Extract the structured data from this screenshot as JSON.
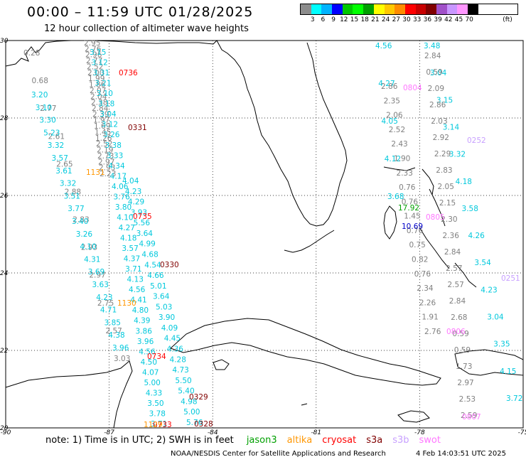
{
  "header": {
    "title": "00:00 – 11:59 UTC 01/28/2025",
    "subtitle": "12 hour collection of altimeter wave heights"
  },
  "legend": {
    "unit": "(ft)",
    "bins": [
      {
        "label": "3",
        "color": "#8c8c8c"
      },
      {
        "label": "6",
        "color": "#00ffff"
      },
      {
        "label": "9",
        "color": "#00b4ff"
      },
      {
        "label": "12",
        "color": "#0000ff"
      },
      {
        "label": "15",
        "color": "#00c800"
      },
      {
        "label": "18",
        "color": "#00ff00"
      },
      {
        "label": "21",
        "color": "#00a000"
      },
      {
        "label": "24",
        "color": "#ffff00"
      },
      {
        "label": "27",
        "color": "#ffc800"
      },
      {
        "label": "30",
        "color": "#ff8c00"
      },
      {
        "label": "33",
        "color": "#ff0000"
      },
      {
        "label": "36",
        "color": "#c80000"
      },
      {
        "label": "39",
        "color": "#800000"
      },
      {
        "label": "42",
        "color": "#a050c8"
      },
      {
        "label": "45",
        "color": "#c896ff"
      },
      {
        "label": "70",
        "color": "#ff96ff"
      },
      {
        "label": "",
        "color": "#000000"
      }
    ]
  },
  "axes": {
    "lon_labels": [
      "-90",
      "-87",
      "-84",
      "-81",
      "-78",
      "-75"
    ],
    "lat_labels": [
      "30",
      "28",
      "26",
      "24",
      "22",
      "20"
    ]
  },
  "tracks": [
    {
      "color": "#808080",
      "values": [
        "2.95",
        "2.76",
        "2.96",
        "2.77",
        "2.52",
        "2.00",
        "1.99",
        "1.86",
        "2.07",
        "2.04",
        "2.38",
        "2.84",
        "2.39",
        "1.97",
        "1.69",
        "1.45",
        "1.26",
        "2.52",
        "2.19",
        "2.73",
        "2.97",
        "2.93",
        "2.23"
      ]
    },
    {
      "color": "#00c8dc",
      "values": [
        "3.15",
        "3.12",
        "3.31",
        "3.21",
        "3.10",
        "3.18",
        "3.04",
        "3.12",
        "3.26",
        "3.38",
        "3.33",
        "4.34",
        "4.17",
        "4.06",
        "3.76",
        "3.80",
        "4.10",
        "4.27",
        "4.18",
        "3.57",
        "4.37",
        "3.71",
        "4.13",
        "4.56",
        "4.41",
        "4.80",
        "4.39",
        "3.86",
        "3.96",
        "4.56",
        "4.50",
        "4.07",
        "5.00",
        "4.33",
        "3.50",
        "3.78",
        "3.71"
      ]
    },
    {
      "color": "#00c8dc",
      "values": [
        "4.04",
        "4.23",
        "4.29",
        "3.93",
        "5.56",
        "3.64",
        "4.99",
        "4.68",
        "4.54",
        "4.66",
        "5.01",
        "3.64",
        "5.03",
        "3.90",
        "4.09",
        "4.45",
        "4.36",
        "4.28",
        "4.73",
        "5.50",
        "5.40",
        "4.98",
        "5.00",
        "5.76"
      ]
    },
    {
      "color": "#808080",
      "values": [
        "0.28",
        "0.68",
        "2.77",
        "2.61",
        "2.65",
        "2.88",
        "2.83",
        "2.93",
        "2.97",
        "2.75",
        "2.57",
        "3.03"
      ]
    },
    {
      "color": "#00c8dc",
      "values": [
        "3.20",
        "3.10",
        "3.30",
        "5.23",
        "3.32",
        "3.57",
        "3.61",
        "3.32",
        "3.51",
        "3.77",
        "3.40",
        "3.26",
        "4.10",
        "4.31",
        "3.69",
        "3.63",
        "4.23",
        "4.71",
        "3.85",
        "4.38",
        "3.96"
      ]
    },
    {
      "color": "#00c8dc",
      "values": [
        "4.56",
        "4.27",
        "4.05",
        "4.12",
        "3.68"
      ]
    },
    {
      "color": "#808080",
      "values": [
        "2.86",
        "2.35",
        "2.06",
        "2.52",
        "2.43",
        "1.90",
        "2.33",
        "0.76",
        "0.76",
        "1.45",
        "0.76",
        "0.75",
        "0.82",
        "0.76",
        "2.34",
        "2.26",
        "1.91",
        "2.76"
      ]
    },
    {
      "color": "#00c8dc",
      "values": [
        "3.48",
        "3.04",
        "3.15",
        "3.14",
        "3.32",
        "4.18",
        "3.58",
        "4.26",
        "3.54",
        "4.23",
        "3.04",
        "3.35",
        "4.15",
        "3.72"
      ]
    },
    {
      "color": "#808080",
      "values": [
        "2.84",
        "0.59",
        "2.09",
        "2.86",
        "2.03",
        "2.92",
        "2.29",
        "2.83",
        "2.05",
        "2.15",
        "2.30",
        "2.36",
        "2.84",
        "2.57",
        "2.57",
        "2.84",
        "2.68",
        "0.59",
        "0.59",
        "1.73",
        "2.97",
        "2.53",
        "2.59"
      ]
    }
  ],
  "special_values": [
    {
      "text": "17.92",
      "color": "#00a000"
    },
    {
      "text": "10.69",
      "color": "#0000c8"
    }
  ],
  "pass_labels": [
    {
      "text": "0736",
      "color": "#ff0000"
    },
    {
      "text": "0331",
      "color": "#800000"
    },
    {
      "text": "1131",
      "color": "#ff9600"
    },
    {
      "text": "0735",
      "color": "#ff0000"
    },
    {
      "text": "0330",
      "color": "#800000"
    },
    {
      "text": "1130",
      "color": "#ff9600"
    },
    {
      "text": "0734",
      "color": "#ff0000"
    },
    {
      "text": "0329",
      "color": "#800000"
    },
    {
      "text": "0733",
      "color": "#ff0000"
    },
    {
      "text": "0328",
      "color": "#800000"
    },
    {
      "text": "0804",
      "color": "#ff78ff"
    },
    {
      "text": "0252",
      "color": "#c8a0ff"
    },
    {
      "text": "0805",
      "color": "#ff78ff"
    },
    {
      "text": "0251",
      "color": "#c8a0ff"
    },
    {
      "text": "0806",
      "color": "#ff78ff"
    },
    {
      "text": "0807",
      "color": "#ff78ff"
    },
    {
      "text": "1129",
      "color": "#ff9600"
    }
  ],
  "footer": {
    "note": "note: 1) Time is in UTC; 2) SWH is in feet",
    "missions": [
      {
        "name": "jason3",
        "color": "#00a000"
      },
      {
        "name": "altika",
        "color": "#ff9600"
      },
      {
        "name": "cryosat",
        "color": "#ff0000"
      },
      {
        "name": "s3a",
        "color": "#800000"
      },
      {
        "name": "s3b",
        "color": "#c8a0ff"
      },
      {
        "name": "swot",
        "color": "#ff78ff"
      }
    ],
    "credit": "NOAA/NESDIS Center for Satellite Applications and Research",
    "timestamp": "4 Feb 14:03:51 UTC 2025"
  }
}
